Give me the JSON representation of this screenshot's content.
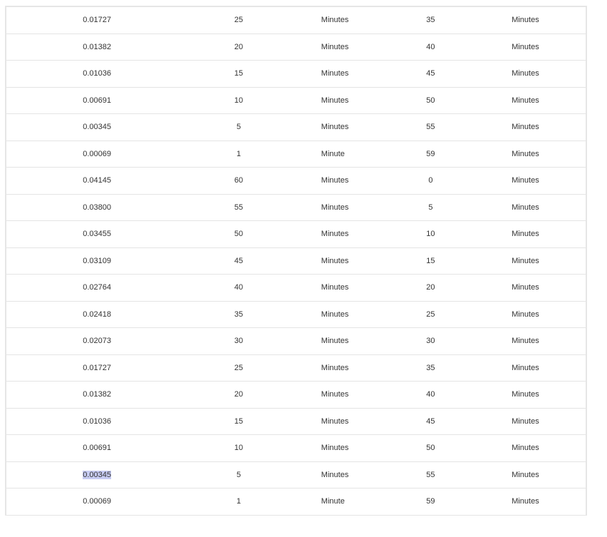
{
  "table": {
    "rows": [
      [
        "0.01727",
        "25",
        "Minutes",
        "35",
        "Minutes"
      ],
      [
        "0.01382",
        "20",
        "Minutes",
        "40",
        "Minutes"
      ],
      [
        "0.01036",
        "15",
        "Minutes",
        "45",
        "Minutes"
      ],
      [
        "0.00691",
        "10",
        "Minutes",
        "50",
        "Minutes"
      ],
      [
        "0.00345",
        "5",
        "Minutes",
        "55",
        "Minutes"
      ],
      [
        "0.00069",
        "1",
        "Minute",
        "59",
        "Minutes"
      ],
      [
        "0.04145",
        "60",
        "Minutes",
        "0",
        "Minutes"
      ],
      [
        "0.03800",
        "55",
        "Minutes",
        "5",
        "Minutes"
      ],
      [
        "0.03455",
        "50",
        "Minutes",
        "10",
        "Minutes"
      ],
      [
        "0.03109",
        "45",
        "Minutes",
        "15",
        "Minutes"
      ],
      [
        "0.02764",
        "40",
        "Minutes",
        "20",
        "Minutes"
      ],
      [
        "0.02418",
        "35",
        "Minutes",
        "25",
        "Minutes"
      ],
      [
        "0.02073",
        "30",
        "Minutes",
        "30",
        "Minutes"
      ],
      [
        "0.01727",
        "25",
        "Minutes",
        "35",
        "Minutes"
      ],
      [
        "0.01382",
        "20",
        "Minutes",
        "40",
        "Minutes"
      ],
      [
        "0.01036",
        "15",
        "Minutes",
        "45",
        "Minutes"
      ],
      [
        "0.00691",
        "10",
        "Minutes",
        "50",
        "Minutes"
      ],
      [
        "0.00345",
        "5",
        "Minutes",
        "55",
        "Minutes"
      ],
      [
        "0.00069",
        "1",
        "Minute",
        "59",
        "Minutes"
      ]
    ],
    "selected_cell": {
      "row": 17,
      "col": 0
    },
    "selection_color": "#c7ccf2"
  }
}
